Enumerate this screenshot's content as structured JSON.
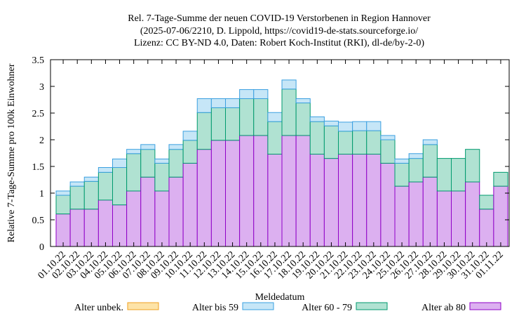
{
  "chart_data": {
    "type": "bar",
    "stacked": true,
    "title_lines": [
      "Rel. 7-Tage-Summe der neuen COVID-19 Verstorbenen in Region Hannover",
      "(2025-07-06/2210, D. Lippold, https://covid19-de-stats.sourceforge.io/",
      "Lizenz: CC BY-ND 4.0, Daten: Robert Koch-Institut (RKI), dl-de/by-2-0)"
    ],
    "xlabel": "Meldedatum",
    "ylabel": "Relative 7-Tage-Summe pro 100k Einwohner",
    "ylim": [
      0,
      3.5
    ],
    "yticks": [
      "0",
      "0.5",
      "1",
      "1.5",
      "2",
      "2.5",
      "3",
      "3.5"
    ],
    "grid": false,
    "legend_position": "bottom",
    "categories": [
      "01.10.22",
      "02.10.22",
      "03.10.22",
      "04.10.22",
      "05.10.22",
      "06.10.22",
      "07.10.22",
      "08.10.22",
      "09.10.22",
      "10.10.22",
      "11.10.22",
      "12.10.22",
      "13.10.22",
      "14.10.22",
      "15.10.22",
      "16.10.22",
      "17.10.22",
      "18.10.22",
      "19.10.22",
      "20.10.22",
      "21.10.22",
      "22.10.22",
      "23.10.22",
      "24.10.22",
      "25.10.22",
      "26.10.22",
      "27.10.22",
      "28.10.22",
      "29.10.22",
      "30.10.22",
      "31.10.22",
      "01.11.22"
    ],
    "series": [
      {
        "name": "Alter ab 80",
        "fill": "#dcb0f0",
        "stroke": "#8f00c7",
        "values": [
          0.61,
          0.7,
          0.7,
          0.87,
          0.78,
          1.04,
          1.3,
          1.04,
          1.3,
          1.56,
          1.82,
          1.99,
          1.99,
          2.08,
          2.08,
          1.73,
          2.08,
          2.08,
          1.73,
          1.65,
          1.73,
          1.73,
          1.73,
          1.56,
          1.13,
          1.21,
          1.3,
          1.04,
          1.04,
          1.21,
          0.7,
          1.13
        ]
      },
      {
        "name": "Alter 60 - 79",
        "fill": "#b0e2d2",
        "stroke": "#009a6e",
        "values": [
          0.35,
          0.43,
          0.52,
          0.52,
          0.7,
          0.7,
          0.52,
          0.52,
          0.52,
          0.43,
          0.69,
          0.61,
          0.61,
          0.69,
          0.69,
          0.61,
          0.87,
          0.61,
          0.61,
          0.61,
          0.43,
          0.44,
          0.44,
          0.44,
          0.43,
          0.44,
          0.61,
          0.61,
          0.61,
          0.61,
          0.26,
          0.26
        ]
      },
      {
        "name": "Alter bis 59",
        "fill": "#c6e6f7",
        "stroke": "#3ba0e0",
        "values": [
          0.08,
          0.08,
          0.08,
          0.09,
          0.16,
          0.08,
          0.09,
          0.08,
          0.09,
          0.17,
          0.26,
          0.17,
          0.17,
          0.17,
          0.17,
          0.17,
          0.17,
          0.08,
          0.09,
          0.09,
          0.17,
          0.17,
          0.17,
          0.08,
          0.08,
          0.09,
          0.09,
          0,
          0,
          0,
          0,
          0
        ]
      },
      {
        "name": "Alter unbek.",
        "fill": "#fde3a7",
        "stroke": "#f0a020",
        "values": [
          0,
          0,
          0,
          0,
          0,
          0,
          0,
          0,
          0,
          0,
          0,
          0,
          0,
          0,
          0,
          0,
          0,
          0,
          0,
          0,
          0,
          0,
          0,
          0,
          0,
          0,
          0,
          0,
          0,
          0,
          0,
          0
        ]
      }
    ],
    "legend": [
      {
        "name": "Alter unbek.",
        "fill": "#fde3a7",
        "stroke": "#f0a020"
      },
      {
        "name": "Alter bis 59",
        "fill": "#c6e6f7",
        "stroke": "#3ba0e0"
      },
      {
        "name": "Alter 60 - 79",
        "fill": "#b0e2d2",
        "stroke": "#009a6e"
      },
      {
        "name": "Alter ab 80",
        "fill": "#dcb0f0",
        "stroke": "#8f00c7"
      }
    ]
  }
}
